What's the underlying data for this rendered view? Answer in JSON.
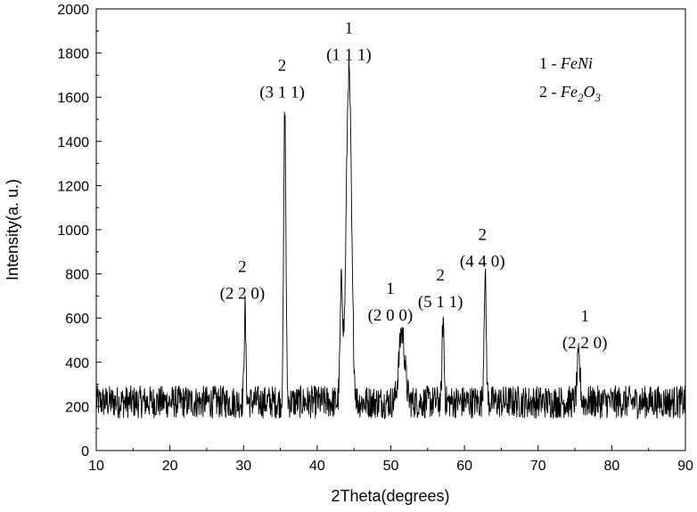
{
  "chart_data": {
    "type": "line",
    "title": "",
    "xlabel": "2Theta(degrees)",
    "ylabel": "Intensity(a. u.)",
    "xlim": [
      10,
      90
    ],
    "ylim": [
      0,
      2000
    ],
    "x_ticks": [
      10,
      20,
      30,
      40,
      50,
      60,
      70,
      80,
      90
    ],
    "y_ticks": [
      0,
      200,
      400,
      600,
      800,
      1000,
      1200,
      1400,
      1600,
      1800,
      2000
    ],
    "grid": false,
    "legend_position": "top-right",
    "series": [
      {
        "baseline": 220,
        "noise_amplitude": 75,
        "peaks": [
          {
            "x": 30.2,
            "y": 640
          },
          {
            "x": 35.6,
            "y": 1550
          },
          {
            "x": 43.3,
            "y": 740
          },
          {
            "x": 44.3,
            "y": 1720
          },
          {
            "x": 51.5,
            "y": 540
          },
          {
            "x": 57.1,
            "y": 600
          },
          {
            "x": 62.8,
            "y": 785
          },
          {
            "x": 75.5,
            "y": 415
          }
        ]
      }
    ],
    "annotations": [
      {
        "id": "peak-220-fe2o3",
        "number": "2",
        "hkl": "(2 2 0)",
        "x": 30.2,
        "y": 640
      },
      {
        "id": "peak-311-fe2o3",
        "number": "2",
        "hkl": "(3 1 1)",
        "x": 35.6,
        "y": 1550
      },
      {
        "id": "peak-111-feni",
        "number": "1",
        "hkl": "(1 1 1)",
        "x": 44.3,
        "y": 1720
      },
      {
        "id": "peak-200-feni",
        "number": "1",
        "hkl": "(2 0 0)",
        "x": 51.5,
        "y": 540
      },
      {
        "id": "peak-511-fe2o3",
        "number": "2",
        "hkl": "(5 1 1)",
        "x": 57.1,
        "y": 600
      },
      {
        "id": "peak-440-fe2o3",
        "number": "2",
        "hkl": "(4 4 0)",
        "x": 62.8,
        "y": 785
      },
      {
        "id": "peak-220-feni",
        "number": "1",
        "hkl": "(2 2 0)",
        "x": 75.5,
        "y": 415
      }
    ],
    "legend": [
      {
        "prefix": "1 - ",
        "phase": "FeNi",
        "phase_main": "FeNi",
        "sub": "",
        "rest": ""
      },
      {
        "prefix": "2 - ",
        "phase": "Fe2O3",
        "phase_main": "Fe",
        "sub": "2",
        "rest": "O",
        "sub2": "3"
      }
    ],
    "line_color": "#000000"
  }
}
